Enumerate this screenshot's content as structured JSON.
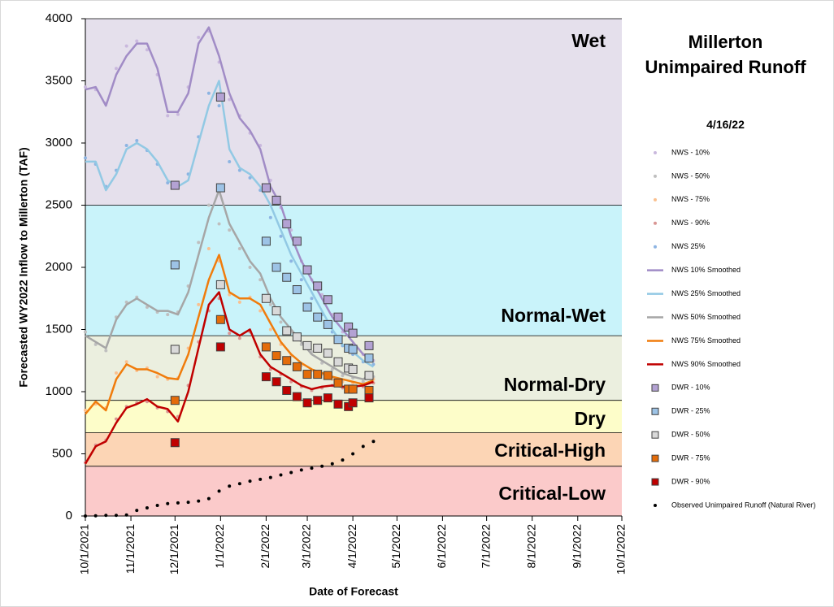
{
  "chart_data": {
    "type": "line",
    "title": "Millerton Unimpaired Runoff",
    "subtitle": "4/16/22",
    "x_label": "Date of Forecast",
    "y_label": "Forecasted WY2022 Inflow to Millerton (TAF)",
    "xlim": [
      "10/1/2021",
      "10/1/2022"
    ],
    "xticks": [
      "10/1/2021",
      "11/1/2021",
      "12/1/2021",
      "1/1/2022",
      "2/1/2022",
      "3/1/2022",
      "4/1/2022",
      "5/1/2022",
      "6/1/2022",
      "7/1/2022",
      "8/1/2022",
      "9/1/2022",
      "10/1/2022"
    ],
    "ylim": [
      0,
      4000
    ],
    "yticks": [
      0,
      500,
      1000,
      1500,
      2000,
      2500,
      3000,
      3500,
      4000
    ],
    "bands": [
      {
        "label": "Wet",
        "from": 2500,
        "to": 4000,
        "color": "#e5e0ec",
        "label_color": "#c4b5da"
      },
      {
        "label": "Normal-Wet",
        "from": 1450,
        "to": 2500,
        "color": "#c9f3fa",
        "label_color": "#8fc1df"
      },
      {
        "label": "Normal-Dry",
        "from": 930,
        "to": 1450,
        "color": "#ebefdf",
        "label_color": "#d3e2b8"
      },
      {
        "label": "Dry",
        "from": 670,
        "to": 930,
        "color": "#fdfdc9",
        "label_color": "#d9d9d9"
      },
      {
        "label": "Critical-High",
        "from": 400,
        "to": 670,
        "color": "#fcd5b5",
        "label_color": "#fabf8f"
      },
      {
        "label": "Critical-Low",
        "from": 0,
        "to": 400,
        "color": "#fbcaca",
        "label_color": "#e49a9a"
      }
    ],
    "x": [
      "10/1/2021",
      "10/8/2021",
      "10/15/2021",
      "10/22/2021",
      "10/29/2021",
      "11/5/2021",
      "11/12/2021",
      "11/19/2021",
      "11/26/2021",
      "12/3/2021",
      "12/10/2021",
      "12/17/2021",
      "12/24/2021",
      "12/31/2021",
      "1/7/2022",
      "1/14/2022",
      "1/21/2022",
      "1/28/2022",
      "2/4/2022",
      "2/11/2022",
      "2/18/2022",
      "2/25/2022",
      "3/4/2022",
      "3/11/2022",
      "3/18/2022",
      "3/25/2022",
      "4/1/2022",
      "4/8/2022",
      "4/15/2022"
    ],
    "series": [
      {
        "name": "NWS - 10%",
        "type": "scatter",
        "color": "#c9b8dd",
        "values": [
          3450,
          3430,
          3320,
          3600,
          3780,
          3820,
          3750,
          3550,
          3220,
          3230,
          3450,
          3850,
          3900,
          3650,
          3350,
          3220,
          3080,
          2980,
          2700,
          2480,
          2300,
          2050,
          1900,
          1780,
          1620,
          1480,
          1380,
          1300,
          1250
        ]
      },
      {
        "name": "NWS - 50%",
        "type": "scatter",
        "color": "#bfbfbf",
        "values": [
          1480,
          1380,
          1330,
          1600,
          1720,
          1760,
          1680,
          1640,
          1620,
          1640,
          1850,
          2200,
          2500,
          2350,
          2300,
          2150,
          2000,
          1900,
          1700,
          1560,
          1480,
          1380,
          1320,
          1230,
          1180,
          1130,
          1110,
          1080,
          1120
        ]
      },
      {
        "name": "NWS - 75%",
        "type": "scatter",
        "color": "#fac08f",
        "values": [
          850,
          900,
          870,
          1150,
          1240,
          1170,
          1190,
          1120,
          1100,
          1110,
          1350,
          1700,
          2150,
          2050,
          1780,
          1720,
          1760,
          1650,
          1500,
          1380,
          1290,
          1210,
          1170,
          1140,
          1100,
          1080,
          1070,
          1050,
          1100
        ]
      },
      {
        "name": "NWS - 90%",
        "type": "scatter",
        "color": "#d99694",
        "values": [
          430,
          570,
          610,
          780,
          880,
          910,
          920,
          870,
          840,
          800,
          1050,
          1400,
          1650,
          1750,
          1470,
          1430,
          1480,
          1280,
          1180,
          1140,
          1080,
          1040,
          1010,
          1030,
          1050,
          1030,
          1040,
          1040,
          1070
        ]
      },
      {
        "name": "NWS 25%",
        "type": "scatter",
        "color": "#8db4e2",
        "values": [
          2880,
          2830,
          2650,
          2780,
          2980,
          3020,
          2940,
          2830,
          2680,
          2660,
          2750,
          3050,
          3400,
          3300,
          2850,
          2780,
          2720,
          2620,
          2400,
          2250,
          2050,
          1900,
          1750,
          1620,
          1480,
          1370,
          1300,
          1240,
          1220
        ]
      },
      {
        "name": "NWS 10% Smoothed",
        "type": "line",
        "color": "#a18cc6",
        "values": [
          3430,
          3450,
          3300,
          3550,
          3700,
          3800,
          3800,
          3600,
          3250,
          3250,
          3400,
          3800,
          3930,
          3700,
          3400,
          3200,
          3100,
          2950,
          2650,
          2500,
          2250,
          2050,
          1900,
          1750,
          1600,
          1500,
          1400,
          1300,
          1250
        ]
      },
      {
        "name": "NWS 25% Smoothed",
        "type": "line",
        "color": "#92c9e4",
        "values": [
          2850,
          2850,
          2620,
          2750,
          2950,
          3000,
          2950,
          2850,
          2700,
          2650,
          2700,
          3000,
          3300,
          3500,
          2950,
          2800,
          2750,
          2650,
          2500,
          2300,
          2100,
          1950,
          1800,
          1650,
          1500,
          1380,
          1320,
          1250,
          1200
        ]
      },
      {
        "name": "NWS 50% Smoothed",
        "type": "line",
        "color": "#a6a6a6",
        "values": [
          1450,
          1400,
          1350,
          1580,
          1700,
          1750,
          1700,
          1650,
          1650,
          1620,
          1800,
          2100,
          2400,
          2620,
          2350,
          2200,
          2050,
          1950,
          1750,
          1600,
          1500,
          1400,
          1300,
          1250,
          1200,
          1150,
          1120,
          1100,
          1150
        ]
      },
      {
        "name": "NWS 75% Smoothed",
        "type": "line",
        "color": "#f07c0c",
        "values": [
          820,
          920,
          850,
          1100,
          1220,
          1180,
          1180,
          1150,
          1110,
          1100,
          1300,
          1600,
          1900,
          2100,
          1800,
          1750,
          1750,
          1700,
          1550,
          1400,
          1300,
          1230,
          1180,
          1150,
          1120,
          1100,
          1080,
          1060,
          1090
        ]
      },
      {
        "name": "NWS 90% Smoothed",
        "type": "line",
        "color": "#c00000",
        "values": [
          420,
          560,
          600,
          750,
          870,
          900,
          940,
          880,
          860,
          760,
          1000,
          1350,
          1700,
          1800,
          1500,
          1450,
          1500,
          1300,
          1200,
          1150,
          1100,
          1050,
          1020,
          1040,
          1050,
          1040,
          1040,
          1050,
          1080
        ]
      },
      {
        "name": "DWR - 10%",
        "type": "square",
        "color": "#b3a2d3",
        "x": [
          "12/1/2021",
          "1/1/2022",
          "2/1/2022",
          "2/8/2022",
          "2/15/2022",
          "2/22/2022",
          "3/1/2022",
          "3/8/2022",
          "3/15/2022",
          "3/22/2022",
          "3/29/2022",
          "4/1/2022",
          "4/12/2022"
        ],
        "values": [
          2660,
          3370,
          2640,
          2540,
          2350,
          2210,
          1980,
          1850,
          1740,
          1600,
          1520,
          1470,
          1370
        ]
      },
      {
        "name": "DWR - 25%",
        "type": "square",
        "color": "#9dc3e6",
        "x": [
          "12/1/2021",
          "1/1/2022",
          "2/1/2022",
          "2/8/2022",
          "2/15/2022",
          "2/22/2022",
          "3/1/2022",
          "3/8/2022",
          "3/15/2022",
          "3/22/2022",
          "3/29/2022",
          "4/1/2022",
          "4/12/2022"
        ],
        "values": [
          2020,
          2640,
          2210,
          2000,
          1920,
          1820,
          1680,
          1600,
          1540,
          1420,
          1350,
          1340,
          1270
        ]
      },
      {
        "name": "DWR - 50%",
        "type": "square",
        "color": "#d9d9d9",
        "x": [
          "12/1/2021",
          "1/1/2022",
          "2/1/2022",
          "2/8/2022",
          "2/15/2022",
          "2/22/2022",
          "3/1/2022",
          "3/8/2022",
          "3/15/2022",
          "3/22/2022",
          "3/29/2022",
          "4/1/2022",
          "4/12/2022"
        ],
        "values": [
          1340,
          1860,
          1750,
          1650,
          1490,
          1440,
          1370,
          1350,
          1310,
          1240,
          1190,
          1180,
          1130
        ]
      },
      {
        "name": "DWR - 75%",
        "type": "square",
        "color": "#e46c0a",
        "x": [
          "12/1/2021",
          "1/1/2022",
          "2/1/2022",
          "2/8/2022",
          "2/15/2022",
          "2/22/2022",
          "3/1/2022",
          "3/8/2022",
          "3/15/2022",
          "3/22/2022",
          "3/29/2022",
          "4/1/2022",
          "4/12/2022"
        ],
        "values": [
          930,
          1580,
          1360,
          1290,
          1250,
          1200,
          1140,
          1140,
          1130,
          1070,
          1020,
          1020,
          1010
        ]
      },
      {
        "name": "DWR - 90%",
        "type": "square",
        "color": "#c00000",
        "x": [
          "12/1/2021",
          "1/1/2022",
          "2/1/2022",
          "2/8/2022",
          "2/15/2022",
          "2/22/2022",
          "3/1/2022",
          "3/8/2022",
          "3/15/2022",
          "3/22/2022",
          "3/29/2022",
          "4/1/2022",
          "4/12/2022"
        ],
        "values": [
          590,
          1360,
          1120,
          1080,
          1010,
          960,
          910,
          930,
          950,
          900,
          880,
          910,
          950
        ]
      },
      {
        "name": "Observed Unimpaired Runoff (Natural River)",
        "type": "scatter",
        "color": "#000000",
        "values": [
          0,
          2,
          5,
          5,
          8,
          45,
          65,
          85,
          100,
          105,
          110,
          120,
          140,
          200,
          240,
          260,
          280,
          295,
          310,
          330,
          350,
          370,
          385,
          400,
          420,
          450,
          500,
          560,
          600
        ]
      }
    ]
  }
}
